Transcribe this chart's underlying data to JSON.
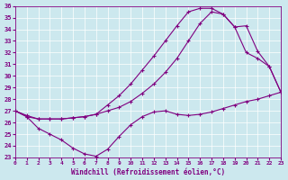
{
  "xlabel": "Windchill (Refroidissement éolien,°C)",
  "bg_color": "#cce8ee",
  "line_color": "#800080",
  "xlim": [
    0,
    23
  ],
  "ylim": [
    23,
    36
  ],
  "xticks": [
    0,
    1,
    2,
    3,
    4,
    5,
    6,
    7,
    8,
    9,
    10,
    11,
    12,
    13,
    14,
    15,
    16,
    17,
    18,
    19,
    20,
    21,
    22,
    23
  ],
  "yticks": [
    23,
    24,
    25,
    26,
    27,
    28,
    29,
    30,
    31,
    32,
    33,
    34,
    35,
    36
  ],
  "curve_bottom_x": [
    0,
    1,
    2,
    3,
    4,
    5,
    6,
    7,
    8,
    9,
    10,
    11,
    12,
    13,
    14,
    15,
    16,
    17,
    18,
    19,
    20,
    21,
    22,
    23
  ],
  "curve_bottom_y": [
    27.0,
    26.5,
    25.5,
    25.0,
    24.5,
    23.8,
    23.3,
    23.1,
    23.7,
    24.8,
    25.8,
    26.5,
    26.9,
    27.0,
    26.7,
    26.6,
    26.7,
    26.9,
    27.2,
    27.5,
    27.8,
    28.0,
    28.3,
    28.6
  ],
  "curve_mid_x": [
    0,
    1,
    2,
    3,
    4,
    5,
    6,
    7,
    8,
    9,
    10,
    11,
    12,
    13,
    14,
    15,
    16,
    17,
    18,
    19,
    20,
    21,
    22,
    23
  ],
  "curve_mid_y": [
    27.0,
    26.5,
    26.3,
    26.3,
    26.3,
    26.4,
    26.5,
    26.7,
    27.0,
    27.3,
    27.8,
    28.5,
    29.3,
    30.3,
    31.5,
    33.0,
    34.5,
    35.5,
    35.3,
    34.2,
    32.0,
    31.5,
    30.8,
    28.6
  ],
  "curve_top_x": [
    0,
    1,
    2,
    3,
    4,
    5,
    6,
    7,
    8,
    9,
    10,
    11,
    12,
    13,
    14,
    15,
    16,
    17,
    18,
    19,
    20,
    21,
    22,
    23
  ],
  "curve_top_y": [
    27.0,
    26.6,
    26.3,
    26.3,
    26.3,
    26.4,
    26.5,
    26.7,
    27.5,
    28.3,
    29.3,
    30.5,
    31.7,
    33.0,
    34.3,
    35.5,
    35.8,
    35.8,
    35.3,
    34.2,
    34.3,
    32.1,
    30.8,
    28.6
  ]
}
